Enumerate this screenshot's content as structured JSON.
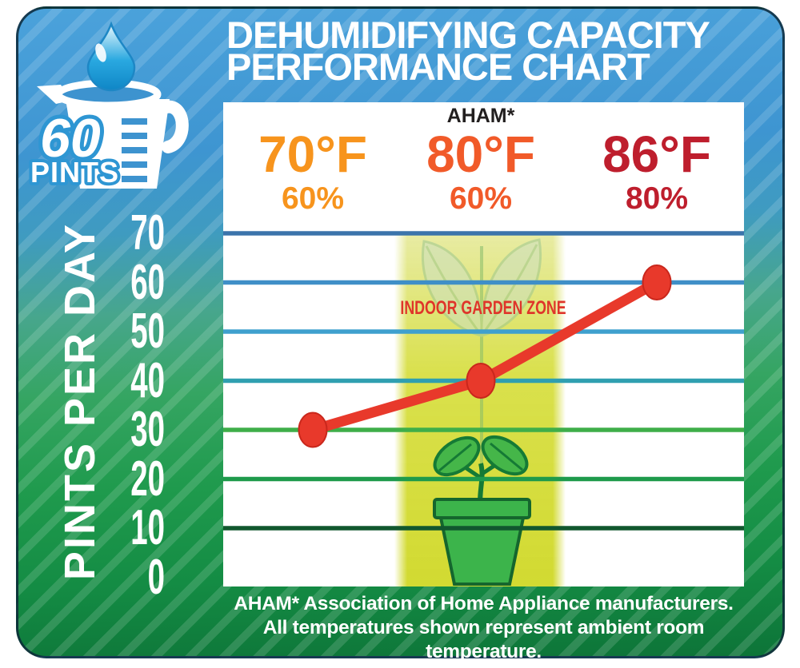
{
  "card": {
    "background_top_color": "#3F96D2",
    "background_bottom_color": "#0E7B3C"
  },
  "title": {
    "line1": "DEHUMIDIFYING CAPACITY",
    "line2": "PERFORMANCE CHART"
  },
  "capacity_badge": {
    "value": "60",
    "unit": "PINTS"
  },
  "y_axis": {
    "label": "PINTS PER DAY",
    "ticks": [
      "70",
      "60",
      "50",
      "40",
      "30",
      "20",
      "10",
      "0"
    ]
  },
  "columns": [
    {
      "note": "",
      "temp": "70°F",
      "humidity": "60%",
      "color": "#F7941D"
    },
    {
      "note": "AHAM*",
      "temp": "80°F",
      "humidity": "60%",
      "color": "#F15A29"
    },
    {
      "note": "",
      "temp": "86°F",
      "humidity": "80%",
      "color": "#BE1E2D"
    }
  ],
  "garden_zone": {
    "label": "INDOOR GARDEN ZONE",
    "text_color": "#DF352A",
    "band_color": "#D3DB2D"
  },
  "footer": {
    "line1": "AHAM* Association of Home Appliance manufacturers.",
    "line2": "All temperatures shown represent ambient room temperature."
  },
  "chart_data": {
    "type": "line",
    "categories": [
      "70°F / 60%",
      "80°F / 60%",
      "86°F / 80%"
    ],
    "x_temperatures_f": [
      70,
      80,
      86
    ],
    "x_humidity_pct": [
      60,
      60,
      80
    ],
    "values": [
      30,
      40,
      60
    ],
    "value_units": "pints per day",
    "title": "DEHUMIDIFYING CAPACITY PERFORMANCE CHART",
    "ylabel": "PINTS PER DAY",
    "ylim": [
      0,
      70
    ],
    "ytick_step": 10,
    "grid": true,
    "grid_values": [
      70,
      60,
      50,
      40,
      30,
      20,
      10
    ],
    "gridline_colors": [
      "#3B74AB",
      "#3F8FC7",
      "#3FA0CE",
      "#2F9FB0",
      "#3FAE49",
      "#1E9A4B",
      "#11572E"
    ],
    "series_color": "#E8392B",
    "marker_stroke_color": "#C9271C",
    "annotations": [
      "AHAM* marks the 80°F / 60% rating condition",
      "INDOOR GARDEN ZONE band highlights the 80°F column"
    ]
  }
}
